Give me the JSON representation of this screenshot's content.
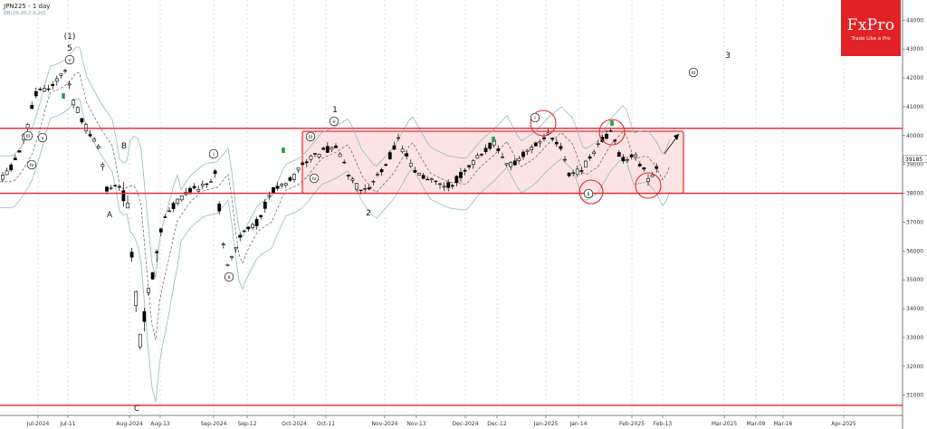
{
  "header": {
    "title": "JPN225 - 1 day",
    "indicator": "BB(20,20,2,0,20)"
  },
  "logo": {
    "brand": "FxPro",
    "tagline": "Trade Like a Pro"
  },
  "colors": {
    "bull": "#ffffff",
    "bear": "#000000",
    "resistance": "#e8262b",
    "zone_fill": "#f9d9da",
    "band": "#8fbcb8",
    "mid": "#444444",
    "signal": "#22a044"
  },
  "chart_data": {
    "type": "candlestick",
    "title": "JPN225 - 1 day",
    "ylim": [
      30300,
      44700
    ],
    "y_ticks": [
      31000,
      32000,
      33000,
      34000,
      35000,
      36000,
      37000,
      38000,
      39000,
      40000,
      41000,
      42000,
      43000,
      44000
    ],
    "x_ticks": [
      "Jul-2024",
      "Jul-11",
      "Aug-2024",
      "Aug-13",
      "Sep-2024",
      "Sep-12",
      "Oct-2024",
      "Oct-11",
      "Nov-2024",
      "Nov-13",
      "Dec-2024",
      "Dec-12",
      "Jan-2025",
      "Jan-14",
      "Feb-2025",
      "Feb-13",
      "Mar-2025",
      "Mar-09",
      "Mar-16",
      "Apr-2025"
    ],
    "current_price": "39185",
    "horizontal_levels": [
      40250,
      38000,
      30650
    ],
    "zone": {
      "start": "Oct-2024",
      "end": "Feb-2025",
      "low": 38000,
      "high": 40150
    },
    "key_points": [
      {
        "date": "Jul-11",
        "value": 42300,
        "note": "(1) 5 peak"
      },
      {
        "date": "Aug-2024",
        "value": 31150,
        "note": "C low"
      },
      {
        "date": "Oct-11",
        "value": 40250,
        "note": "1"
      },
      {
        "date": "Nov-2024",
        "value": 37700,
        "note": "2"
      }
    ],
    "wave_labels": [
      "(1)",
      "5",
      "B",
      "A",
      "C",
      "1",
      "2",
      "3",
      "i",
      "ii",
      "iii",
      "iv",
      "v"
    ],
    "grid": true,
    "legend": "none"
  }
}
